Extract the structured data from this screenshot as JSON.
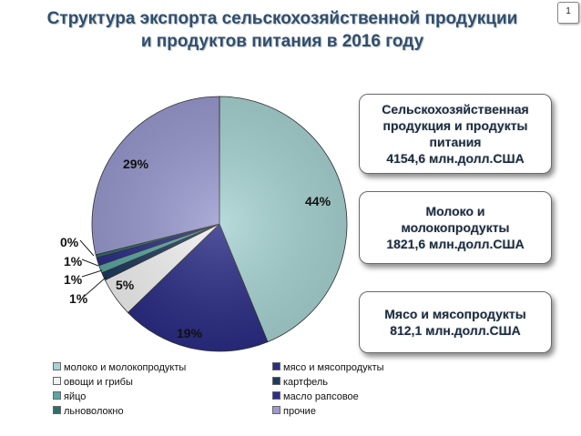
{
  "page_number": "1",
  "title_lines": [
    "Структура экспорта сельскохозяйственной продукции",
    "и продуктов питания в 2016 году"
  ],
  "info_boxes": [
    {
      "lines": [
        "Сельскохозяйственная",
        "продукция и продукты",
        "питания",
        "4154,6 млн.долл.США"
      ]
    },
    {
      "lines": [
        "Молоко и",
        "молокопродукты",
        "1821,6 млн.долл.США"
      ]
    },
    {
      "lines": [
        "Мясо и мясопродукты",
        "812,1 млн.долл.США"
      ]
    }
  ],
  "chart_data": {
    "type": "pie",
    "title": "",
    "legend_position": "bottom",
    "slices": [
      {
        "name": "молоко и молокопродукты",
        "value": 44,
        "label": "44%",
        "color": "#a7d3d2"
      },
      {
        "name": "мясо и мясопродукты",
        "value": 19,
        "label": "19%",
        "color": "#2b2d85"
      },
      {
        "name": "овощи и грибы",
        "value": 5,
        "label": "5%",
        "color": "#f2f2f2"
      },
      {
        "name": "картфель",
        "value": 1,
        "label": "1%",
        "color": "#1f3a5e"
      },
      {
        "name": "яйцо",
        "value": 1,
        "label": "1%",
        "color": "#5aa6a2"
      },
      {
        "name": "масло рапсовое",
        "value": 1,
        "label": "1%",
        "color": "#2c2e8c"
      },
      {
        "name": "льноволокно",
        "value": 0.4,
        "label": "0%",
        "color": "#2e6e6c"
      },
      {
        "name": "прочие",
        "value": 29,
        "label": "29%",
        "color": "#9a9ad0"
      }
    ]
  }
}
